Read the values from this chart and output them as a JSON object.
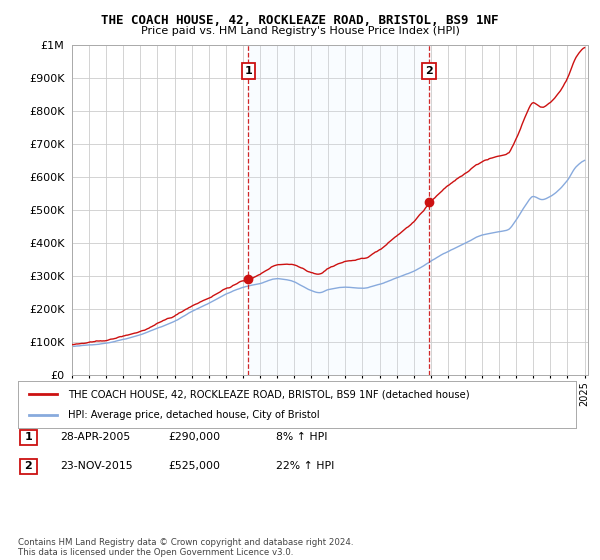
{
  "title": "THE COACH HOUSE, 42, ROCKLEAZE ROAD, BRISTOL, BS9 1NF",
  "subtitle": "Price paid vs. HM Land Registry's House Price Index (HPI)",
  "ytick_vals": [
    0,
    100000,
    200000,
    300000,
    400000,
    500000,
    600000,
    700000,
    800000,
    900000,
    1000000
  ],
  "ylim": [
    0,
    1000000
  ],
  "xlim_start": 1995.0,
  "xlim_end": 2025.2,
  "transactions": [
    {
      "year": 2005.33,
      "price": 290000,
      "label": "1"
    },
    {
      "year": 2015.9,
      "price": 525000,
      "label": "2"
    }
  ],
  "legend_line1": "THE COACH HOUSE, 42, ROCKLEAZE ROAD, BRISTOL, BS9 1NF (detached house)",
  "legend_line2": "HPI: Average price, detached house, City of Bristol",
  "note1_label": "1",
  "note1_date": "28-APR-2005",
  "note1_price": "£290,000",
  "note1_hpi": "8% ↑ HPI",
  "note2_label": "2",
  "note2_date": "23-NOV-2015",
  "note2_price": "£525,000",
  "note2_hpi": "22% ↑ HPI",
  "copyright": "Contains HM Land Registry data © Crown copyright and database right 2024.\nThis data is licensed under the Open Government Licence v3.0.",
  "line_color": "#cc1111",
  "hpi_color": "#88aadd",
  "fill_color": "#ddeeff",
  "dashed_color": "#cc1111",
  "background_color": "#ffffff",
  "grid_color": "#cccccc"
}
